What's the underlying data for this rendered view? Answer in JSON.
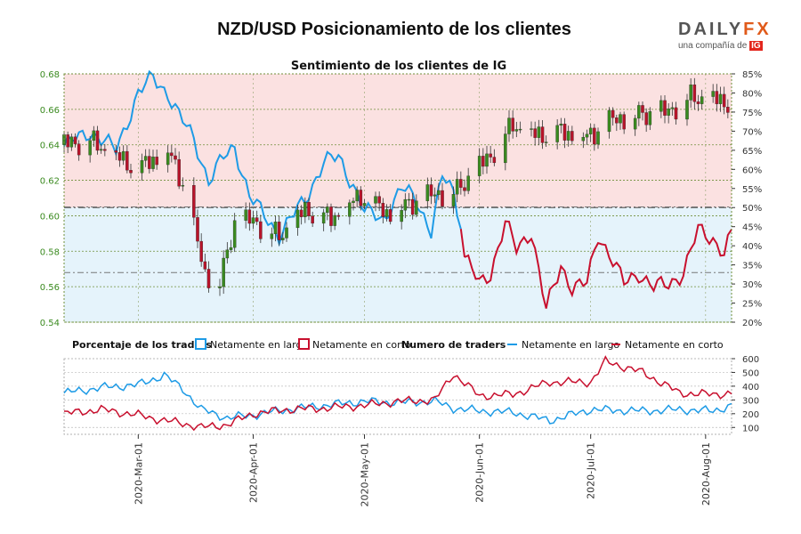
{
  "header": {
    "title": "NZD/USD Posicionamiento de los clientes",
    "logo": {
      "brand_main": "DAILY",
      "brand_accent": "FX",
      "tagline": "una compañía de",
      "tagline_brand": "IG"
    }
  },
  "colors": {
    "long": "#1e9be6",
    "short": "#c8102e",
    "long_fill": "#e5f3fb",
    "short_fill": "#fbe1e1",
    "candle_up": "#3a8a1f",
    "candle_down": "#b8132a",
    "axis_left": "#3a8a1f"
  },
  "legend": {
    "pct_title": "Porcentaje de los traders",
    "pct_long": "Netamente en largo",
    "pct_short": "Netamente en corto",
    "num_title": "Numero de traders",
    "num_long": "Netamente en largo",
    "num_short": "Netamente en corto"
  },
  "chart_data": [
    {
      "type": "line",
      "title": "Sentimiento de los clientes de IG",
      "x_ticks": [
        "2020-Mar-01",
        "2020-Apr-01",
        "2020-May-01",
        "2020-Jun-01",
        "2020-Jul-01",
        "2020-Aug-01"
      ],
      "price_axis": {
        "ticks": [
          "0.54",
          "0.56",
          "0.58",
          "0.60",
          "0.62",
          "0.64",
          "0.66",
          "0.68"
        ],
        "ylim": [
          0.54,
          0.68
        ]
      },
      "pct_axis": {
        "ticks": [
          "20%",
          "25%",
          "30%",
          "35%",
          "40%",
          "45%",
          "50%",
          "55%",
          "60%",
          "65%",
          "70%",
          "75%",
          "80%",
          "85%"
        ],
        "ylim": [
          20,
          85
        ]
      },
      "reference_lines": {
        "pct": 50,
        "price": [
          0.605,
          0.568
        ]
      },
      "price_anchors": [
        {
          "date": "2020-02-10",
          "price": 0.64
        },
        {
          "date": "2020-02-17",
          "price": 0.642
        },
        {
          "date": "2020-02-24",
          "price": 0.633
        },
        {
          "date": "2020-03-01",
          "price": 0.626
        },
        {
          "date": "2020-03-09",
          "price": 0.636
        },
        {
          "date": "2020-03-13",
          "price": 0.618
        },
        {
          "date": "2020-03-19",
          "price": 0.567
        },
        {
          "date": "2020-03-23",
          "price": 0.562
        },
        {
          "date": "2020-03-27",
          "price": 0.596
        },
        {
          "date": "2020-04-01",
          "price": 0.597
        },
        {
          "date": "2020-04-08",
          "price": 0.588
        },
        {
          "date": "2020-04-15",
          "price": 0.603
        },
        {
          "date": "2020-04-22",
          "price": 0.598
        },
        {
          "date": "2020-04-30",
          "price": 0.611
        },
        {
          "date": "2020-05-07",
          "price": 0.601
        },
        {
          "date": "2020-05-14",
          "price": 0.607
        },
        {
          "date": "2020-05-20",
          "price": 0.612
        },
        {
          "date": "2020-05-26",
          "price": 0.614
        },
        {
          "date": "2020-05-29",
          "price": 0.621
        },
        {
          "date": "2020-06-04",
          "price": 0.634
        },
        {
          "date": "2020-06-10",
          "price": 0.651
        },
        {
          "date": "2020-06-16",
          "price": 0.645
        },
        {
          "date": "2020-06-23",
          "price": 0.647
        },
        {
          "date": "2020-06-30",
          "price": 0.644
        },
        {
          "date": "2020-07-07",
          "price": 0.654
        },
        {
          "date": "2020-07-14",
          "price": 0.657
        },
        {
          "date": "2020-07-21",
          "price": 0.658
        },
        {
          "date": "2020-07-28",
          "price": 0.667
        },
        {
          "date": "2020-08-04",
          "price": 0.665
        },
        {
          "date": "2020-08-07",
          "price": 0.664
        }
      ],
      "pct_long_anchors": [
        {
          "date": "2020-02-10",
          "value": 66
        },
        {
          "date": "2020-02-17",
          "value": 70
        },
        {
          "date": "2020-02-24",
          "value": 65
        },
        {
          "date": "2020-03-01",
          "value": 80
        },
        {
          "date": "2020-03-05",
          "value": 84
        },
        {
          "date": "2020-03-09",
          "value": 80
        },
        {
          "date": "2020-03-12",
          "value": 74
        },
        {
          "date": "2020-03-16",
          "value": 68
        },
        {
          "date": "2020-03-20",
          "value": 57
        },
        {
          "date": "2020-03-24",
          "value": 63
        },
        {
          "date": "2020-03-27",
          "value": 66
        },
        {
          "date": "2020-03-31",
          "value": 53
        },
        {
          "date": "2020-04-03",
          "value": 49
        },
        {
          "date": "2020-04-08",
          "value": 43
        },
        {
          "date": "2020-04-15",
          "value": 52
        },
        {
          "date": "2020-04-20",
          "value": 62
        },
        {
          "date": "2020-04-24",
          "value": 63
        },
        {
          "date": "2020-04-28",
          "value": 56
        },
        {
          "date": "2020-05-01",
          "value": 49
        },
        {
          "date": "2020-05-06",
          "value": 47
        },
        {
          "date": "2020-05-11",
          "value": 55
        },
        {
          "date": "2020-05-15",
          "value": 52
        },
        {
          "date": "2020-05-19",
          "value": 44
        },
        {
          "date": "2020-05-22",
          "value": 58
        },
        {
          "date": "2020-05-25",
          "value": 54
        },
        {
          "date": "2020-05-27",
          "value": 46
        }
      ],
      "pct_short_anchors": [
        {
          "date": "2020-05-28",
          "value": 37
        },
        {
          "date": "2020-06-01",
          "value": 30
        },
        {
          "date": "2020-06-04",
          "value": 33
        },
        {
          "date": "2020-06-08",
          "value": 46
        },
        {
          "date": "2020-06-11",
          "value": 39
        },
        {
          "date": "2020-06-15",
          "value": 44
        },
        {
          "date": "2020-06-19",
          "value": 23
        },
        {
          "date": "2020-06-23",
          "value": 35
        },
        {
          "date": "2020-06-26",
          "value": 29
        },
        {
          "date": "2020-06-30",
          "value": 30
        },
        {
          "date": "2020-07-03",
          "value": 43
        },
        {
          "date": "2020-07-06",
          "value": 38
        },
        {
          "date": "2020-07-10",
          "value": 30
        },
        {
          "date": "2020-07-14",
          "value": 33
        },
        {
          "date": "2020-07-18",
          "value": 29
        },
        {
          "date": "2020-07-22",
          "value": 30
        },
        {
          "date": "2020-07-26",
          "value": 33
        },
        {
          "date": "2020-07-30",
          "value": 44
        },
        {
          "date": "2020-08-03",
          "value": 42
        },
        {
          "date": "2020-08-06",
          "value": 38
        },
        {
          "date": "2020-08-08",
          "value": 43
        }
      ]
    },
    {
      "type": "line",
      "title": "Numero de traders",
      "y_ticks": [
        "100",
        "200",
        "300",
        "400",
        "500",
        "600"
      ],
      "ylim": [
        50,
        600
      ],
      "series": [
        {
          "name": "Netamente en largo",
          "anchors": [
            {
              "date": "2020-02-10",
              "value": 350
            },
            {
              "date": "2020-02-20",
              "value": 390
            },
            {
              "date": "2020-03-01",
              "value": 410
            },
            {
              "date": "2020-03-08",
              "value": 480
            },
            {
              "date": "2020-03-13",
              "value": 380
            },
            {
              "date": "2020-03-18",
              "value": 230
            },
            {
              "date": "2020-03-25",
              "value": 170
            },
            {
              "date": "2020-04-01",
              "value": 190
            },
            {
              "date": "2020-04-10",
              "value": 230
            },
            {
              "date": "2020-04-20",
              "value": 260
            },
            {
              "date": "2020-05-01",
              "value": 290
            },
            {
              "date": "2020-05-10",
              "value": 280
            },
            {
              "date": "2020-05-20",
              "value": 290
            },
            {
              "date": "2020-05-25",
              "value": 240
            },
            {
              "date": "2020-06-01",
              "value": 220
            },
            {
              "date": "2020-06-10",
              "value": 210
            },
            {
              "date": "2020-06-20",
              "value": 150
            },
            {
              "date": "2020-07-01",
              "value": 230
            },
            {
              "date": "2020-07-15",
              "value": 220
            },
            {
              "date": "2020-07-25",
              "value": 230
            },
            {
              "date": "2020-08-03",
              "value": 220
            },
            {
              "date": "2020-08-08",
              "value": 260
            }
          ]
        },
        {
          "name": "Netamente en corto",
          "anchors": [
            {
              "date": "2020-02-10",
              "value": 200
            },
            {
              "date": "2020-02-20",
              "value": 230
            },
            {
              "date": "2020-03-01",
              "value": 190
            },
            {
              "date": "2020-03-08",
              "value": 150
            },
            {
              "date": "2020-03-13",
              "value": 130
            },
            {
              "date": "2020-03-18",
              "value": 100
            },
            {
              "date": "2020-03-25",
              "value": 120
            },
            {
              "date": "2020-04-01",
              "value": 200
            },
            {
              "date": "2020-04-10",
              "value": 230
            },
            {
              "date": "2020-04-20",
              "value": 240
            },
            {
              "date": "2020-05-01",
              "value": 260
            },
            {
              "date": "2020-05-10",
              "value": 290
            },
            {
              "date": "2020-05-20",
              "value": 300
            },
            {
              "date": "2020-05-25",
              "value": 490
            },
            {
              "date": "2020-06-01",
              "value": 330
            },
            {
              "date": "2020-06-10",
              "value": 340
            },
            {
              "date": "2020-06-20",
              "value": 430
            },
            {
              "date": "2020-07-01",
              "value": 430
            },
            {
              "date": "2020-07-05",
              "value": 580
            },
            {
              "date": "2020-07-15",
              "value": 500
            },
            {
              "date": "2020-07-25",
              "value": 350
            },
            {
              "date": "2020-08-03",
              "value": 340
            },
            {
              "date": "2020-08-08",
              "value": 350
            }
          ]
        }
      ]
    }
  ]
}
